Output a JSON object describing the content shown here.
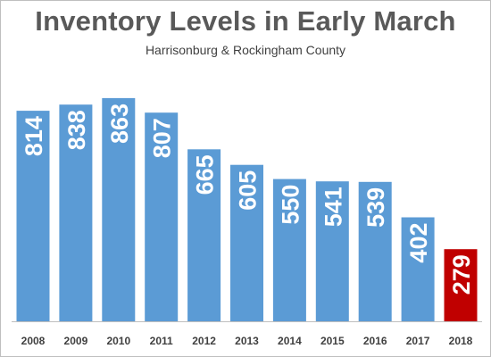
{
  "chart_data": {
    "type": "bar",
    "title": "Inventory Levels in Early March",
    "subtitle": "Harrisonburg & Rockingham County",
    "categories": [
      "2008",
      "2009",
      "2010",
      "2011",
      "2012",
      "2013",
      "2014",
      "2015",
      "2016",
      "2017",
      "2018"
    ],
    "values": [
      814,
      838,
      863,
      807,
      665,
      605,
      550,
      541,
      539,
      402,
      279
    ],
    "bar_colors": [
      "#5b9bd5",
      "#5b9bd5",
      "#5b9bd5",
      "#5b9bd5",
      "#5b9bd5",
      "#5b9bd5",
      "#5b9bd5",
      "#5b9bd5",
      "#5b9bd5",
      "#5b9bd5",
      "#c00000"
    ],
    "data_label_color": "#ffffff",
    "axis_color": "#bfbfbf",
    "ylim": [
      0,
      880
    ],
    "grid": false,
    "legend": "none",
    "data_labels": "inside-end, rotated vertical"
  }
}
